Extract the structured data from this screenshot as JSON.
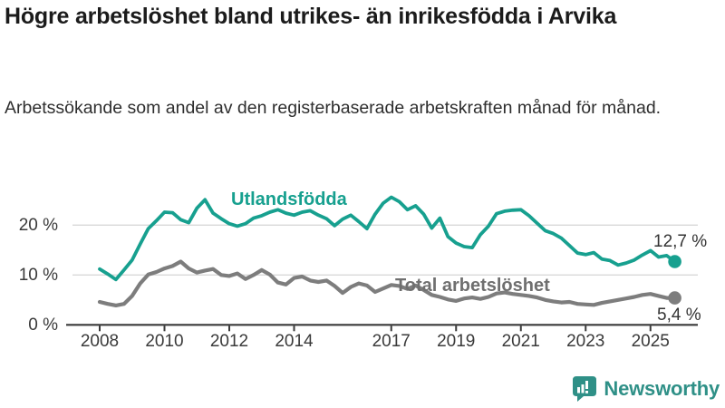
{
  "header": {
    "title": "Högre arbetslöshet bland utrikes- än inrikesfödda i Arvika",
    "subtitle": "Arbetssökande som andel av den registerbaserade arbetskraften månad för månad."
  },
  "chart_data": {
    "type": "line",
    "title": "Högre arbetslöshet bland utrikes- än inrikesfödda i Arvika",
    "subtitle": "Arbetssökande som andel av den registerbaserade arbetskraften månad för månad.",
    "unit": "%",
    "grid": "horizontal",
    "legend_position": "inline-annotations",
    "x_ticks": [
      2008,
      2010,
      2012,
      2014,
      2017,
      2019,
      2021,
      2023,
      2025
    ],
    "y_ticks": [
      0,
      10,
      20
    ],
    "y_tick_suffix": " %",
    "xlim": [
      2008,
      2026
    ],
    "ylim": [
      0,
      27
    ],
    "x_start": 2008,
    "x_step": 0.25,
    "colors": {
      "grid": "#d9d9d9",
      "axis": "#3a3a3a",
      "text": "#3a3a3a"
    },
    "series": [
      {
        "name": "Utlandsfödda",
        "color": "#17a08f",
        "end_label": "12,7 %",
        "end_value": 12.7,
        "values": [
          11.2,
          10.2,
          9.1,
          11.0,
          13.0,
          16.2,
          19.3,
          20.9,
          22.6,
          22.5,
          21.1,
          20.5,
          23.4,
          25.1,
          22.4,
          21.3,
          20.3,
          19.8,
          20.3,
          21.4,
          21.9,
          22.6,
          23.1,
          22.4,
          22.0,
          22.6,
          22.9,
          22.0,
          21.3,
          19.9,
          21.2,
          22.0,
          20.7,
          19.3,
          22.2,
          24.4,
          25.6,
          24.7,
          23.1,
          23.9,
          22.2,
          19.4,
          21.4,
          17.7,
          16.4,
          15.7,
          15.5,
          18.1,
          19.8,
          22.3,
          22.8,
          23.0,
          23.1,
          21.9,
          20.4,
          18.9,
          18.3,
          17.4,
          15.9,
          14.4,
          14.1,
          14.5,
          13.2,
          12.9,
          12.0,
          12.4,
          13.0,
          14.0,
          14.9,
          13.6,
          13.9,
          12.7
        ]
      },
      {
        "name": "Total arbetslöshet",
        "color": "#7d7d7d",
        "end_label": "5,4 %",
        "end_value": 5.4,
        "values": [
          4.6,
          4.2,
          3.9,
          4.2,
          5.8,
          8.3,
          10.1,
          10.6,
          11.3,
          11.8,
          12.7,
          11.3,
          10.5,
          10.9,
          11.2,
          10.0,
          9.8,
          10.3,
          9.2,
          10.0,
          11.0,
          10.1,
          8.5,
          8.1,
          9.4,
          9.7,
          8.9,
          8.6,
          8.9,
          7.8,
          6.4,
          7.6,
          8.3,
          7.9,
          6.6,
          7.3,
          8.0,
          7.8,
          7.2,
          7.9,
          7.0,
          6.0,
          5.6,
          5.1,
          4.8,
          5.3,
          5.5,
          5.2,
          5.6,
          6.3,
          6.5,
          6.2,
          6.0,
          5.8,
          5.5,
          5.0,
          4.7,
          4.5,
          4.6,
          4.2,
          4.1,
          4.0,
          4.4,
          4.7,
          5.0,
          5.3,
          5.6,
          6.0,
          6.2,
          5.8,
          5.4,
          5.4
        ]
      }
    ]
  },
  "footer": {
    "logo_text": "Newsworthy"
  }
}
